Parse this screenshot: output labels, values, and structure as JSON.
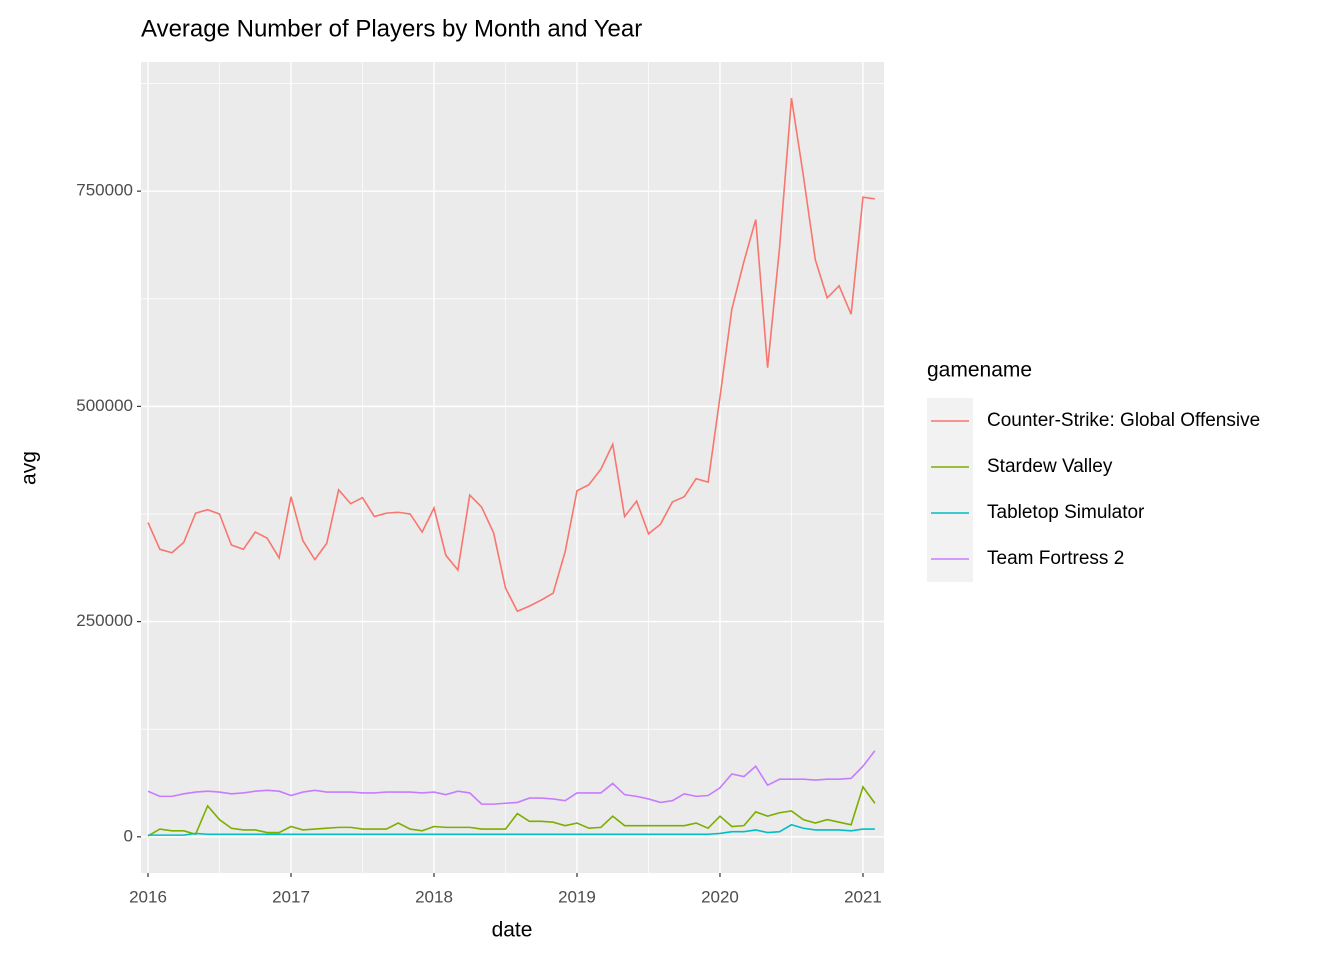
{
  "chart_data": {
    "type": "line",
    "title": "Average Number of Players by Month and Year",
    "x_label": "date",
    "y_label": "avg",
    "legend_title": "gamename",
    "grid": true,
    "legend_position": "right",
    "xlim": [
      2015.951,
      2021.147
    ],
    "ylim": [
      -42000,
      900000
    ],
    "xticks": [
      2016,
      2017,
      2018,
      2019,
      2020,
      2021
    ],
    "yticks": [
      0,
      250000,
      500000,
      750000
    ],
    "x": [
      2016.0,
      2016.083,
      2016.167,
      2016.25,
      2016.333,
      2016.417,
      2016.5,
      2016.583,
      2016.667,
      2016.75,
      2016.833,
      2016.917,
      2017.0,
      2017.083,
      2017.167,
      2017.25,
      2017.333,
      2017.417,
      2017.5,
      2017.583,
      2017.667,
      2017.75,
      2017.833,
      2017.917,
      2018.0,
      2018.083,
      2018.167,
      2018.25,
      2018.333,
      2018.417,
      2018.5,
      2018.583,
      2018.667,
      2018.75,
      2018.833,
      2018.917,
      2019.0,
      2019.083,
      2019.167,
      2019.25,
      2019.333,
      2019.417,
      2019.5,
      2019.583,
      2019.667,
      2019.75,
      2019.833,
      2019.917,
      2020.0,
      2020.083,
      2020.167,
      2020.25,
      2020.333,
      2020.417,
      2020.5,
      2020.583,
      2020.667,
      2020.75,
      2020.833,
      2020.917,
      2021.0,
      2021.083
    ],
    "series": [
      {
        "name": "Counter-Strike: Global Offensive",
        "color": "#F8766D",
        "values": [
          365000,
          334000,
          330000,
          342000,
          376000,
          380000,
          375000,
          339000,
          334000,
          354000,
          347000,
          324000,
          395000,
          344000,
          322000,
          341000,
          403000,
          387000,
          394000,
          372000,
          376000,
          377000,
          375000,
          354000,
          382000,
          327000,
          310000,
          397000,
          383000,
          353000,
          289000,
          262000,
          268000,
          275000,
          283000,
          331000,
          402000,
          409000,
          427000,
          456000,
          372000,
          390000,
          352000,
          363000,
          389000,
          395000,
          416000,
          412000,
          511000,
          613000,
          668000,
          717000,
          545000,
          685000,
          858000,
          768000,
          670000,
          626000,
          640000,
          607000,
          743000,
          741000
        ]
      },
      {
        "name": "Stardew Valley",
        "color": "#7CAE00",
        "values": [
          1000,
          9000,
          7000,
          7000,
          3000,
          36000,
          20000,
          10000,
          8000,
          8000,
          5000,
          5000,
          12000,
          8000,
          9000,
          10000,
          11000,
          11000,
          9000,
          9000,
          9000,
          16000,
          9000,
          7000,
          12000,
          11000,
          11000,
          11000,
          9000,
          9000,
          9000,
          27000,
          18000,
          18000,
          17000,
          13000,
          16000,
          10000,
          11000,
          24000,
          13000,
          13000,
          13000,
          13000,
          13000,
          13000,
          16000,
          10000,
          24000,
          12000,
          13000,
          29000,
          24000,
          28000,
          30000,
          20000,
          16000,
          20000,
          17000,
          14000,
          58000,
          39000
        ]
      },
      {
        "name": "Tabletop Simulator",
        "color": "#00BFC4",
        "values": [
          2000,
          2000,
          2000,
          2000,
          4000,
          3000,
          3000,
          3000,
          3000,
          3000,
          3000,
          3000,
          3000,
          3000,
          3000,
          3000,
          3000,
          3000,
          3000,
          3000,
          3000,
          3000,
          3000,
          3000,
          3000,
          3000,
          3000,
          3000,
          3000,
          3000,
          3000,
          3000,
          3000,
          3000,
          3000,
          3000,
          3000,
          3000,
          3000,
          3000,
          3000,
          3000,
          3000,
          3000,
          3000,
          3000,
          3000,
          3000,
          4000,
          6000,
          6000,
          8000,
          5000,
          6000,
          14000,
          10000,
          8000,
          8000,
          8000,
          7000,
          9000,
          9000
        ]
      },
      {
        "name": "Team Fortress 2",
        "color": "#C77CFF",
        "values": [
          53000,
          47000,
          47000,
          50000,
          52000,
          53000,
          52000,
          50000,
          51000,
          53000,
          54000,
          53000,
          48000,
          52000,
          54000,
          52000,
          52000,
          52000,
          51000,
          51000,
          52000,
          52000,
          52000,
          51000,
          52000,
          49000,
          53000,
          51000,
          38000,
          38000,
          39000,
          40000,
          45000,
          45000,
          44000,
          42000,
          51000,
          51000,
          51000,
          62000,
          49000,
          47000,
          44000,
          40000,
          42000,
          50000,
          47000,
          48000,
          57000,
          73000,
          70000,
          82000,
          60000,
          67000,
          67000,
          67000,
          66000,
          67000,
          67000,
          68000,
          82000,
          100000
        ]
      }
    ]
  }
}
